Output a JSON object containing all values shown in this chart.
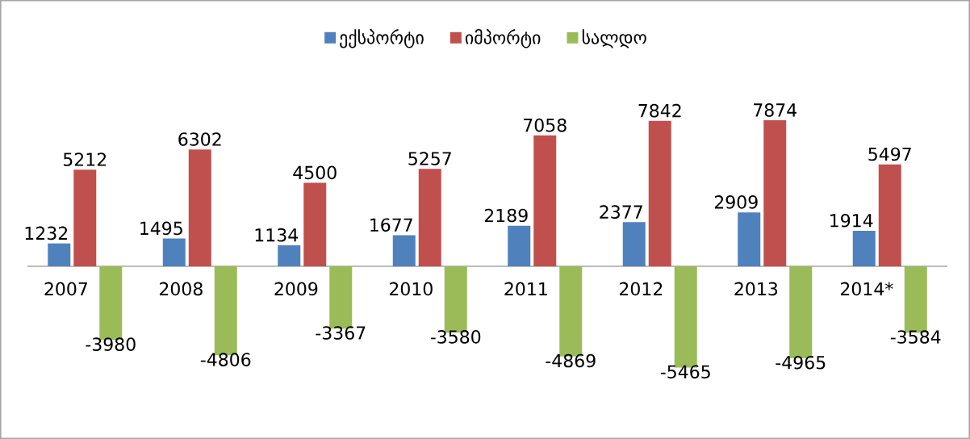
{
  "chart_data": {
    "type": "bar",
    "categories": [
      "2007",
      "2008",
      "2009",
      "2010",
      "2011",
      "2012",
      "2013",
      "2014*"
    ],
    "series": [
      {
        "name": "ექსპორტი",
        "color": "#4f81bd",
        "values": [
          1232,
          1495,
          1134,
          1677,
          2189,
          2377,
          2909,
          1914
        ]
      },
      {
        "name": "იმპორტი",
        "color": "#c0504d",
        "values": [
          5212,
          6302,
          4500,
          5257,
          7058,
          7842,
          7874,
          5497
        ]
      },
      {
        "name": "სალდო",
        "color": "#9bbb59",
        "values": [
          -3980,
          -4806,
          -3367,
          -3580,
          -4869,
          -5465,
          -4965,
          -3584
        ]
      }
    ],
    "data_labels": true,
    "legend": "top"
  }
}
